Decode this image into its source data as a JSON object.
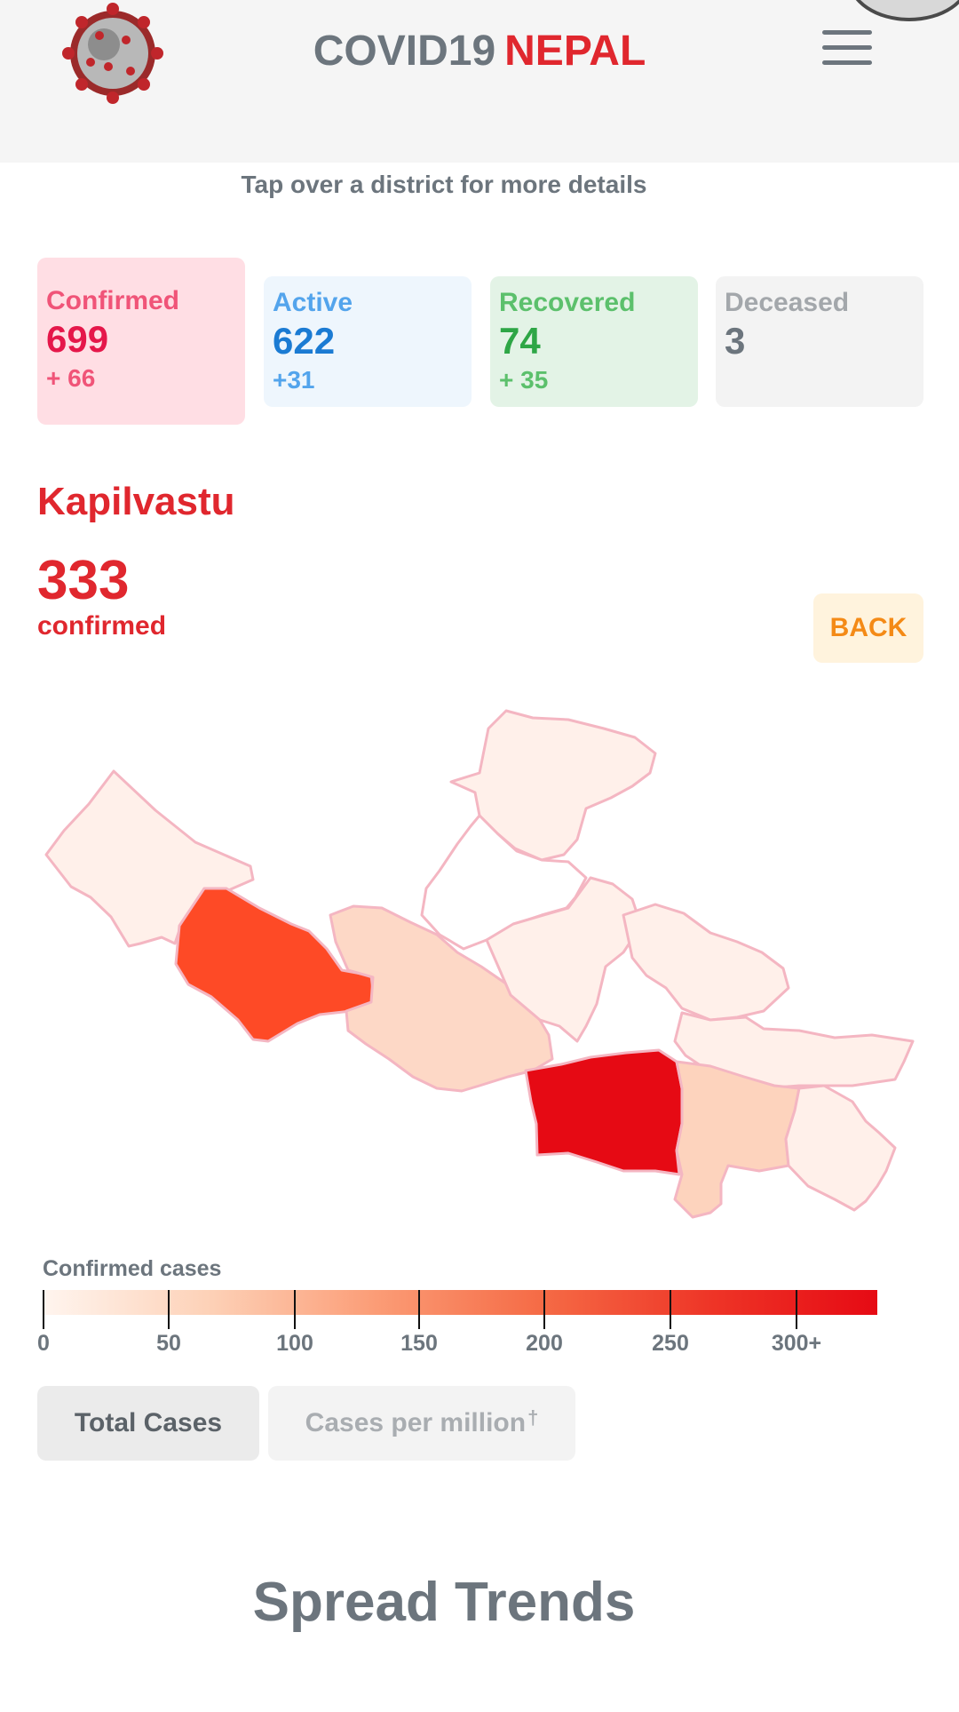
{
  "header": {
    "title_part1": "COVID19",
    "title_part2": "NEPAL",
    "logo": "coronavirus-logo",
    "menu_icon": "hamburger-menu-icon"
  },
  "hint": "Tap over a district for more details",
  "stats": {
    "confirmed": {
      "label": "Confirmed",
      "value": "699",
      "delta": "+ 66"
    },
    "active": {
      "label": "Active",
      "value": "622",
      "delta": "+31"
    },
    "recovered": {
      "label": "Recovered",
      "value": "74",
      "delta": "+ 35"
    },
    "deceased": {
      "label": "Deceased",
      "value": "3"
    }
  },
  "district": {
    "name": "Kapilvastu",
    "count": "333",
    "count_label": "confirmed"
  },
  "back_label": "BACK",
  "legend": {
    "title": "Confirmed cases",
    "ticks": [
      "0",
      "50",
      "100",
      "150",
      "200",
      "250",
      "300+"
    ]
  },
  "toggle": {
    "total_label": "Total Cases",
    "per_million_label": "Cases per million",
    "per_million_mark": "†"
  },
  "section_title": "Spread Trends",
  "colors": {
    "brand_red": "#e0272e",
    "back_orange": "#f48a16",
    "selected_district": "#e60a14"
  }
}
